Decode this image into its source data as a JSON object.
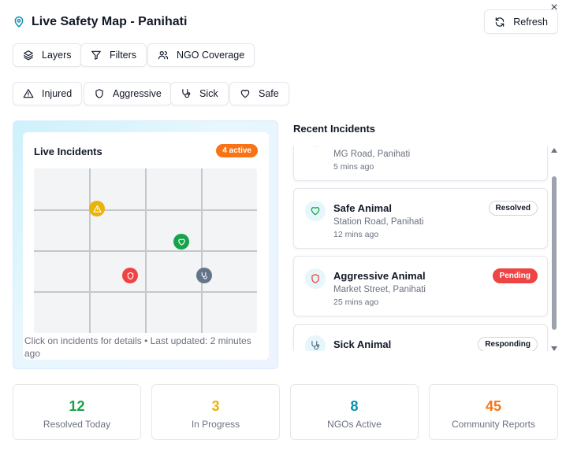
{
  "header": {
    "title": "Live Safety Map - Panihati",
    "pin_icon": "map-pin-icon",
    "close_label": "×"
  },
  "toolbar": {
    "refresh_label": "Refresh",
    "layers_label": "Layers",
    "filters_label": "Filters",
    "ngo_label": "NGO Coverage"
  },
  "filters": {
    "injured": "Injured",
    "aggressive": "Aggressive",
    "sick": "Sick",
    "safe": "Safe"
  },
  "map": {
    "title": "Live Incidents",
    "active_badge": "4 active",
    "caption": "Click on incidents for details • Last updated: 2 minutes ago",
    "markers": [
      {
        "type": "injured",
        "color": "#eab308",
        "icon": "alert-triangle-icon"
      },
      {
        "type": "safe",
        "color": "#16a34a",
        "icon": "heart-icon"
      },
      {
        "type": "aggressive",
        "color": "#ef4444",
        "icon": "shield-icon"
      },
      {
        "type": "sick",
        "color": "#64748b",
        "icon": "stethoscope-icon"
      }
    ]
  },
  "recent": {
    "title": "Recent Incidents",
    "items": [
      {
        "name": "",
        "location": "MG Road, Panihati",
        "time": "5 mins ago",
        "status": ""
      },
      {
        "name": "Safe Animal",
        "location": "Station Road, Panihati",
        "time": "12 mins ago",
        "status": "Resolved",
        "icon": "heart-icon",
        "icon_color": "#16a34a"
      },
      {
        "name": "Aggressive Animal",
        "location": "Market Street, Panihati",
        "time": "25 mins ago",
        "status": "Pending",
        "icon": "shield-icon",
        "icon_color": "#ef4444"
      },
      {
        "name": "Sick Animal",
        "location": "",
        "time": "",
        "status": "Responding",
        "icon": "stethoscope-icon",
        "icon_color": "#64748b"
      }
    ]
  },
  "stats": [
    {
      "value": "12",
      "label": "Resolved Today",
      "color": "#16a34a"
    },
    {
      "value": "3",
      "label": "In Progress",
      "color": "#eab308"
    },
    {
      "value": "8",
      "label": "NGOs Active",
      "color": "#0891b2"
    },
    {
      "value": "45",
      "label": "Community Reports",
      "color": "#f97316"
    }
  ]
}
